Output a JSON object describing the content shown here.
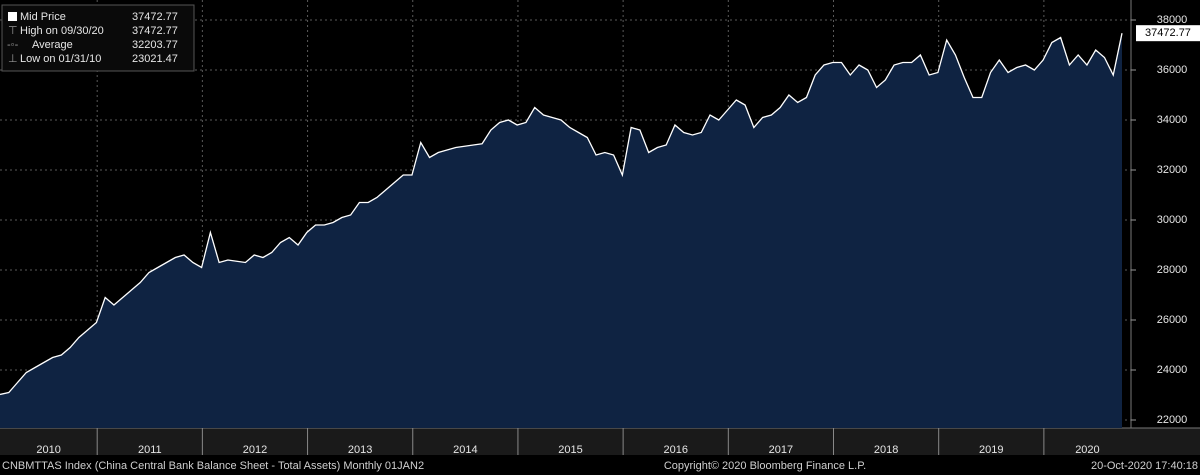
{
  "chart_data": {
    "type": "area",
    "categories": [
      "2010",
      null,
      null,
      null,
      null,
      null,
      null,
      null,
      null,
      null,
      null,
      null,
      "2011",
      null,
      null,
      null,
      null,
      null,
      null,
      null,
      null,
      null,
      null,
      null,
      "2012",
      null,
      null,
      null,
      null,
      null,
      null,
      null,
      null,
      null,
      null,
      null,
      "2013",
      null,
      null,
      null,
      null,
      null,
      null,
      null,
      null,
      null,
      null,
      null,
      "2014",
      null,
      null,
      null,
      null,
      null,
      null,
      null,
      null,
      null,
      null,
      null,
      "2015",
      null,
      null,
      null,
      null,
      null,
      null,
      null,
      null,
      null,
      null,
      null,
      "2016",
      null,
      null,
      null,
      null,
      null,
      null,
      null,
      null,
      null,
      null,
      null,
      "2017",
      null,
      null,
      null,
      null,
      null,
      null,
      null,
      null,
      null,
      null,
      null,
      "2018",
      null,
      null,
      null,
      null,
      null,
      null,
      null,
      null,
      null,
      null,
      null,
      "2019",
      null,
      null,
      null,
      null,
      null,
      null,
      null,
      null,
      null,
      null,
      null,
      "2020",
      null,
      null,
      null,
      null,
      null,
      null,
      null,
      null
    ],
    "series": [
      {
        "name": "Mid Price",
        "color": "#ffffff",
        "fill": "#0f2342",
        "values": [
          23021.47,
          23100,
          23500,
          23900,
          24100,
          24300,
          24500,
          24600,
          24900,
          25300,
          25600,
          25900,
          26900,
          26600,
          26900,
          27200,
          27500,
          27900,
          28100,
          28300,
          28500,
          28600,
          28300,
          28100,
          29500,
          28300,
          28400,
          28350,
          28300,
          28600,
          28500,
          28700,
          29100,
          29300,
          29000,
          29500,
          29800,
          29800,
          29900,
          30100,
          30200,
          30700,
          30700,
          30900,
          31200,
          31500,
          31800,
          31800,
          33100,
          32500,
          32700,
          32800,
          32900,
          32950,
          33000,
          33050,
          33600,
          33900,
          34000,
          33800,
          33900,
          34500,
          34200,
          34100,
          34000,
          33700,
          33500,
          33300,
          32600,
          32700,
          32600,
          31800,
          33700,
          33600,
          32700,
          32900,
          33000,
          33800,
          33500,
          33400,
          33500,
          34200,
          34000,
          34400,
          34800,
          34600,
          33700,
          34100,
          34200,
          34500,
          35000,
          34700,
          34900,
          35800,
          36200,
          36300,
          36300,
          35800,
          36200,
          36000,
          35300,
          35600,
          36200,
          36300,
          36300,
          36600,
          35800,
          35900,
          37200,
          36600,
          35700,
          34900,
          34900,
          35900,
          36400,
          35900,
          36100,
          36200,
          36000,
          36400,
          37100,
          37300,
          36200,
          36600,
          36200,
          36800,
          36500,
          35800,
          37472.77
        ]
      }
    ],
    "stats": [
      {
        "label": "High on 09/30/20",
        "value": 37472.77
      },
      {
        "label": "Average",
        "value": 32203.77
      },
      {
        "label": "Low on 01/31/10",
        "value": 23021.47
      }
    ],
    "ylim": [
      21800,
      38400
    ],
    "yticks": [
      22000,
      24000,
      26000,
      28000,
      30000,
      32000,
      34000,
      36000,
      38000
    ],
    "grid": true,
    "footer": {
      "source": "CNBMTTAS Index (China Central Bank Balance Sheet - Total Assets)  Monthly 01JAN2",
      "copyright": "Copyright© 2020 Bloomberg Finance L.P.",
      "timestamp": "20-Oct-2020 17:40:18"
    }
  }
}
